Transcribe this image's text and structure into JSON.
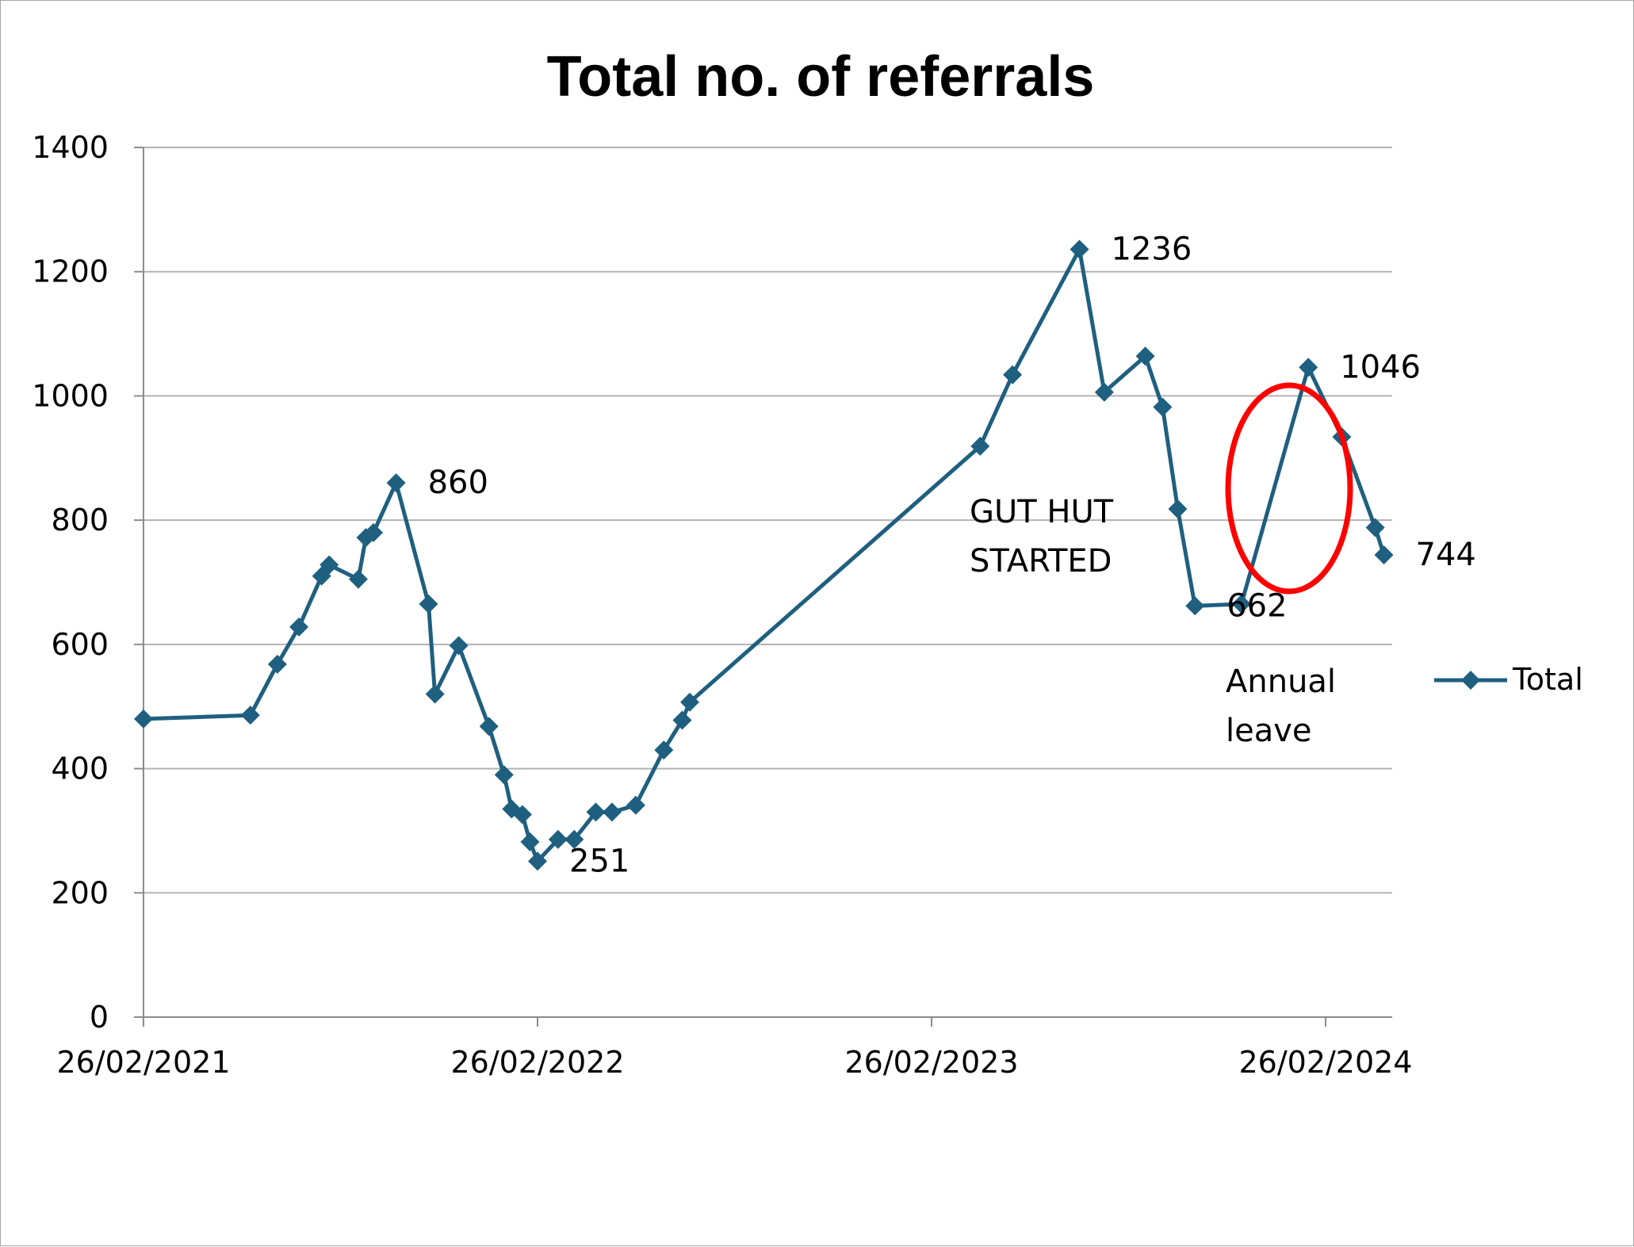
{
  "chart_data": {
    "type": "line",
    "title": "Total no. of referrals",
    "xlabel": "",
    "ylabel": "",
    "ylim": [
      0,
      1400
    ],
    "yticks": [
      0,
      200,
      400,
      600,
      800,
      1000,
      1200,
      1400
    ],
    "xlim": [
      "2021-02-26",
      "2024-04-30"
    ],
    "xticks": [
      {
        "date": "2021-02-26",
        "label": "26/02/2021"
      },
      {
        "date": "2022-02-26",
        "label": "26/02/2022"
      },
      {
        "date": "2023-02-26",
        "label": "26/02/2023"
      },
      {
        "date": "2024-02-26",
        "label": "26/02/2024"
      }
    ],
    "grid": "horizontal",
    "legend": "right",
    "series": [
      {
        "name": "Total",
        "color": "#1f5f7f",
        "marker": "diamond",
        "points": [
          {
            "x": "2021-02-26",
            "y": 480
          },
          {
            "x": "2021-06-05",
            "y": 486
          },
          {
            "x": "2021-06-30",
            "y": 568
          },
          {
            "x": "2021-07-20",
            "y": 628
          },
          {
            "x": "2021-08-10",
            "y": 710
          },
          {
            "x": "2021-08-17",
            "y": 728
          },
          {
            "x": "2021-09-13",
            "y": 705
          },
          {
            "x": "2021-09-20",
            "y": 772
          },
          {
            "x": "2021-09-27",
            "y": 780
          },
          {
            "x": "2021-10-18",
            "y": 860
          },
          {
            "x": "2021-11-17",
            "y": 665
          },
          {
            "x": "2021-11-23",
            "y": 520
          },
          {
            "x": "2021-12-15",
            "y": 598
          },
          {
            "x": "2022-01-12",
            "y": 468
          },
          {
            "x": "2022-01-26",
            "y": 390
          },
          {
            "x": "2022-02-02",
            "y": 335
          },
          {
            "x": "2022-02-12",
            "y": 326
          },
          {
            "x": "2022-02-19",
            "y": 282
          },
          {
            "x": "2022-02-26",
            "y": 251
          },
          {
            "x": "2022-03-17",
            "y": 286
          },
          {
            "x": "2022-04-01",
            "y": 286
          },
          {
            "x": "2022-04-21",
            "y": 330
          },
          {
            "x": "2022-05-06",
            "y": 330
          },
          {
            "x": "2022-05-28",
            "y": 341
          },
          {
            "x": "2022-06-23",
            "y": 430
          },
          {
            "x": "2022-07-10",
            "y": 478
          },
          {
            "x": "2022-07-17",
            "y": 507
          },
          {
            "x": "2023-04-12",
            "y": 919
          },
          {
            "x": "2023-05-12",
            "y": 1034
          },
          {
            "x": "2023-07-13",
            "y": 1236
          },
          {
            "x": "2023-08-05",
            "y": 1006
          },
          {
            "x": "2023-09-12",
            "y": 1064
          },
          {
            "x": "2023-09-28",
            "y": 982
          },
          {
            "x": "2023-10-12",
            "y": 818
          },
          {
            "x": "2023-10-28",
            "y": 662
          },
          {
            "x": "2023-12-10",
            "y": 665
          },
          {
            "x": "2024-02-10",
            "y": 1046
          },
          {
            "x": "2024-03-12",
            "y": 934
          },
          {
            "x": "2024-04-12",
            "y": 788
          },
          {
            "x": "2024-04-20",
            "y": 744
          }
        ]
      }
    ],
    "data_labels": [
      {
        "text": "860",
        "x": "2021-10-18",
        "y": 860
      },
      {
        "text": "251",
        "x": "2022-02-26",
        "y": 251
      },
      {
        "text": "1236",
        "x": "2023-07-13",
        "y": 1236
      },
      {
        "text": "662",
        "x": "2023-10-28",
        "y": 662
      },
      {
        "text": "1046",
        "x": "2024-02-10",
        "y": 1046
      },
      {
        "text": "744",
        "x": "2024-04-20",
        "y": 744
      }
    ],
    "annotations": [
      {
        "lines": [
          "GUT HUT",
          "STARTED"
        ]
      },
      {
        "lines": [
          "Annual",
          "leave"
        ]
      }
    ],
    "highlight": {
      "shape": "ellipse",
      "color": "#ff0000"
    }
  }
}
